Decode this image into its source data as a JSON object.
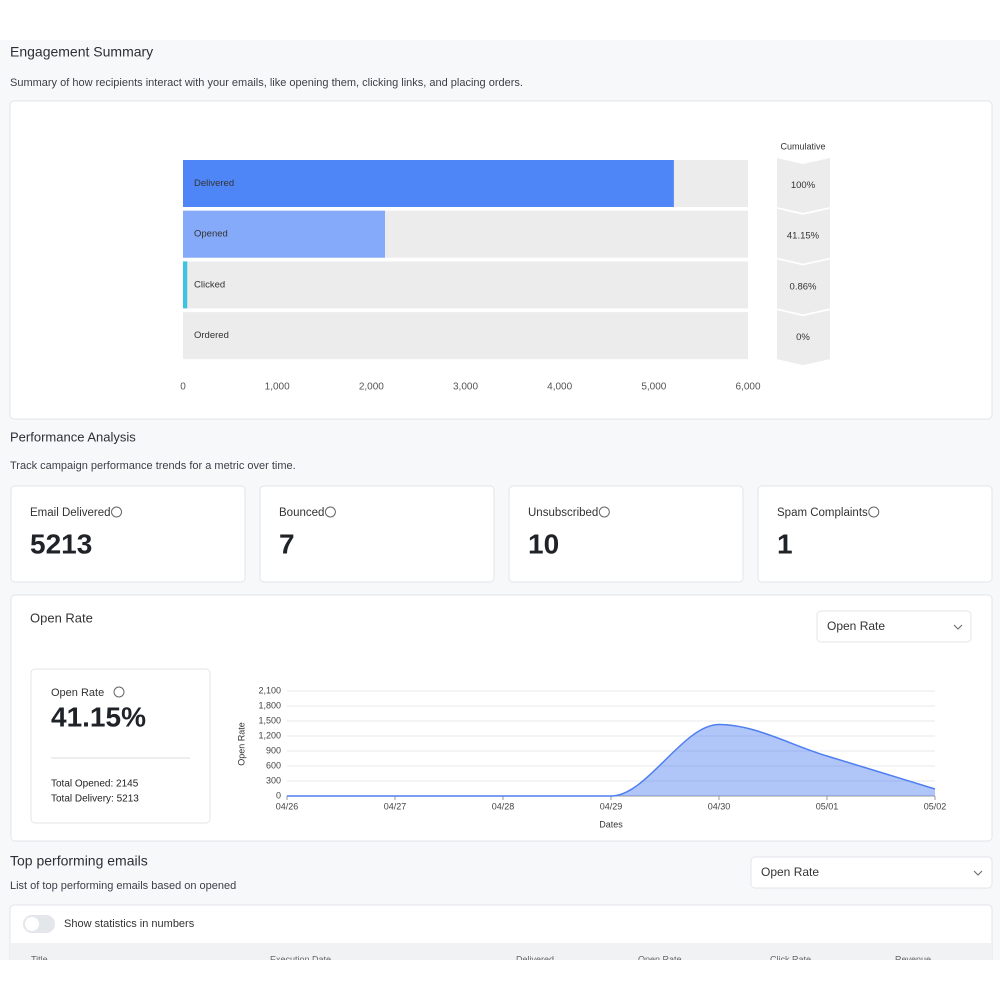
{
  "engagement": {
    "title": "Engagement Summary",
    "subtitle": "Summary of how recipients interact with your emails, like opening them, clicking links, and placing orders."
  },
  "chart_data": [
    {
      "type": "bar",
      "orientation": "horizontal",
      "categories": [
        "Delivered",
        "Opened",
        "Clicked",
        "Ordered"
      ],
      "values": [
        5213,
        2145,
        45,
        0
      ],
      "colors": [
        "#4f86f7",
        "#85aaf9",
        "#3ec3e0",
        "#4f86f7"
      ],
      "xlim": [
        0,
        6000
      ],
      "xticks": [
        0,
        {
          "value": 1000,
          "label": "1,000"
        },
        {
          "value": 2000,
          "label": "2,000"
        },
        {
          "value": 3000,
          "label": "3,000"
        },
        {
          "value": 4000,
          "label": "4,000"
        },
        {
          "value": 5000,
          "label": "5,000"
        },
        {
          "value": 6000,
          "label": "6,000"
        }
      ],
      "cumulative_title": "Cumulative",
      "cumulative_labels": [
        "100%",
        "41.15%",
        "0.86%",
        "0%"
      ]
    },
    {
      "type": "area",
      "categories": [
        "04/26",
        "04/27",
        "04/28",
        "04/29",
        "04/30",
        "05/01",
        "05/02"
      ],
      "values": [
        0,
        0,
        0,
        0,
        1430,
        800,
        140
      ],
      "color": "#4f7ff0",
      "ylabel": "Open Rate",
      "xlabel": "Dates",
      "ylim": [
        0,
        2100
      ],
      "yticks": [
        0,
        300,
        600,
        900,
        {
          "value": 1200,
          "label": "1,200"
        },
        {
          "value": 1500,
          "label": "1,500"
        },
        {
          "value": 1800,
          "label": "1,800"
        },
        {
          "value": 2100,
          "label": "2,100"
        }
      ],
      "grid": true
    }
  ],
  "performance": {
    "title": "Performance Analysis",
    "subtitle": "Track campaign performance trends for a metric over time.",
    "stats": [
      {
        "label": "Email Delivered",
        "value": 5213
      },
      {
        "label": "Bounced",
        "value": 7
      },
      {
        "label": "Unsubscribed",
        "value": 10
      },
      {
        "label": "Spam Complaints",
        "value": 1
      }
    ]
  },
  "open_rate_card": {
    "title": "Open Rate",
    "dropdown": "Open Rate",
    "summary": {
      "label": "Open Rate",
      "value": "41.15%",
      "total_opened": "Total Opened: 2145",
      "total_delivery": "Total Delivery: 5213"
    }
  },
  "top_emails": {
    "title": "Top performing emails",
    "subtitle": "List of top performing emails based on opened",
    "dropdown": "Open Rate",
    "toggle": "Show statistics in numbers",
    "columns": [
      "Title",
      "Execution Date",
      "Delivered",
      "Open Rate",
      "Click Rate",
      "Revenue"
    ]
  }
}
